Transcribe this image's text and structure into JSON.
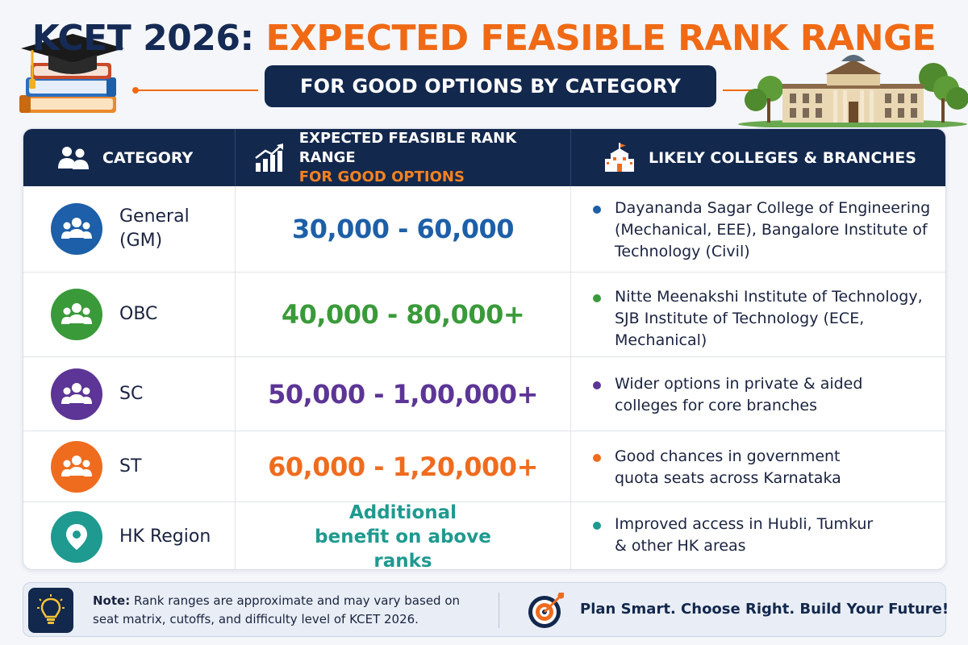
{
  "header": {
    "title_part1": "KCET 2026: ",
    "title_part2": "EXPECTED FEASIBLE RANK RANGE",
    "subtitle": "FOR GOOD OPTIONS BY CATEGORY"
  },
  "table": {
    "columns": {
      "category": "CATEGORY",
      "rank_line1": "EXPECTED FEASIBLE RANK RANGE",
      "rank_line2": "FOR GOOD OPTIONS",
      "colleges": "LIKELY COLLEGES & BRANCHES"
    },
    "rows": [
      {
        "category": "General (GM)",
        "icon": "group-icon",
        "color": "#1d5fa8",
        "rank": "30,000 - 60,000",
        "colleges": "Dayananda Sagar College of Engineering (Mechanical, EEE), Bangalore Institute of Technology (Civil)"
      },
      {
        "category": "OBC",
        "icon": "group-icon",
        "color": "#3a9a3a",
        "rank": "40,000 - 80,000+",
        "colleges": "Nitte Meenakshi Institute of Technology, SJB Institute of Technology (ECE, Mechanical)"
      },
      {
        "category": "SC",
        "icon": "group-icon",
        "color": "#5c3596",
        "rank": "50,000 - 1,00,000+",
        "colleges": "Wider options in private & aided colleges for core branches"
      },
      {
        "category": "ST",
        "icon": "group-icon",
        "color": "#ef6c1e",
        "rank": "60,000 - 1,20,000+",
        "colleges": "Good chances in government quota seats across Karnataka"
      },
      {
        "category": "HK Region",
        "icon": "location-pin-icon",
        "color": "#1f9a90",
        "rank": "Additional benefit on above ranks",
        "colleges": "Improved access in Hubli, Tumkur & other HK areas"
      }
    ]
  },
  "footer": {
    "note_label": "Note:",
    "note_text": "Rank ranges are approximate and may vary based on seat matrix, cutoffs, and difficulty level of KCET 2026.",
    "tagline": "Plan Smart. Choose Right. Build Your Future!",
    "icons": [
      "lightbulb-icon",
      "target-icon"
    ]
  }
}
